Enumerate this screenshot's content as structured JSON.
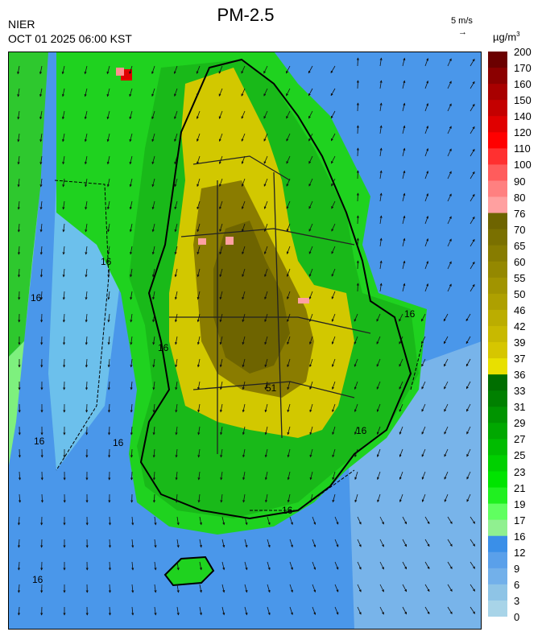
{
  "header": {
    "agency": "NIER",
    "timestamp": "OCT 01 2025 06:00 KST",
    "title": "PM-2.5",
    "wind_reference": "5 m/s",
    "unit_base": "µg/m",
    "unit_exponent": "3"
  },
  "legend": {
    "labels": [
      "200",
      "170",
      "160",
      "150",
      "140",
      "120",
      "110",
      "100",
      "90",
      "80",
      "76",
      "70",
      "65",
      "60",
      "55",
      "50",
      "46",
      "42",
      "39",
      "37",
      "36",
      "33",
      "31",
      "29",
      "27",
      "25",
      "23",
      "21",
      "19",
      "17",
      "16",
      "12",
      "9",
      "6",
      "3",
      "0"
    ],
    "colors": [
      "#6b0000",
      "#8b0000",
      "#a80000",
      "#c40000",
      "#e00000",
      "#ff0000",
      "#ff3030",
      "#ff5c5c",
      "#ff8080",
      "#ffa0a0",
      "#6e6400",
      "#7a7000",
      "#877c00",
      "#948800",
      "#a19400",
      "#aea000",
      "#bbad00",
      "#c8b900",
      "#d6c600",
      "#e8e000",
      "#006e00",
      "#008000",
      "#009400",
      "#00a800",
      "#00bc00",
      "#00d000",
      "#00e400",
      "#20f020",
      "#60ff60",
      "#90f090",
      "#3a8fe8",
      "#5aa0ea",
      "#72b0ea",
      "#8ec4e6",
      "#a8d4e8"
    ]
  },
  "map": {
    "contour_labels": [
      "16",
      "16",
      "16",
      "16",
      "16",
      "16",
      "16",
      "16",
      "16",
      "51"
    ]
  }
}
